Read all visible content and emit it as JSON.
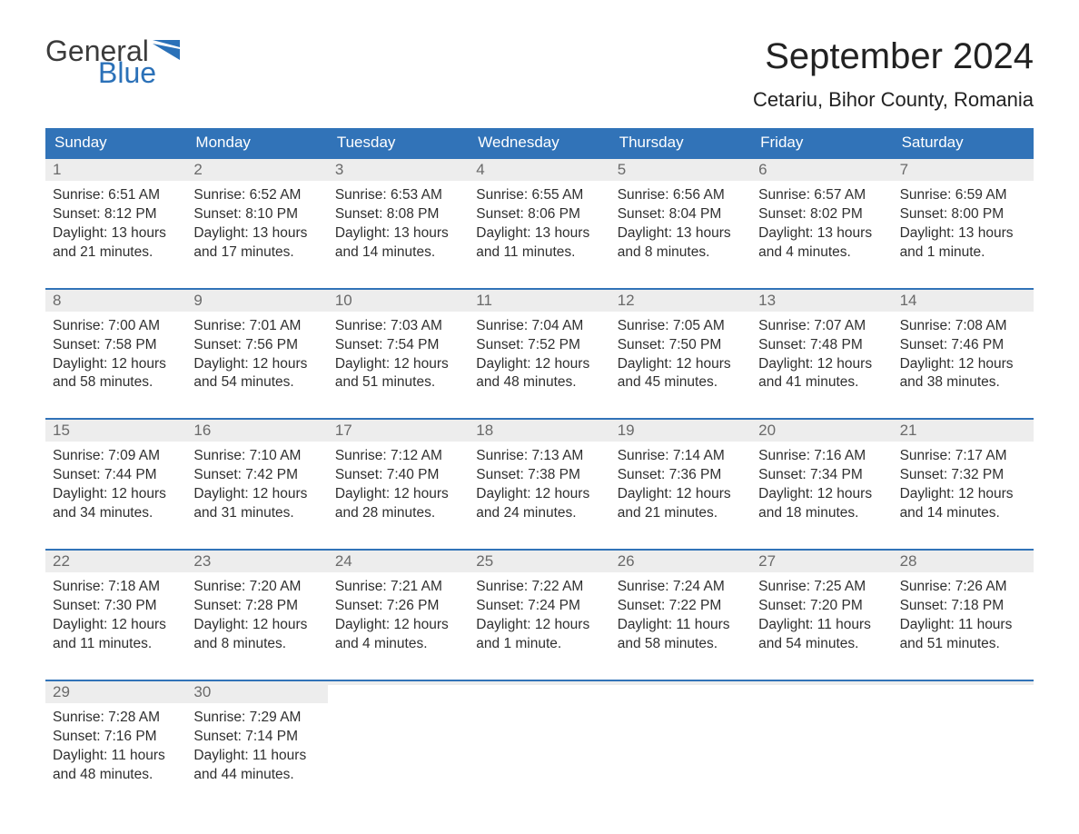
{
  "brand": {
    "text1": "General",
    "text2": "Blue",
    "flag_color": "#2b71b8"
  },
  "title": "September 2024",
  "location": "Cetariu, Bihor County, Romania",
  "colors": {
    "header_bg": "#3173b8",
    "header_text": "#ffffff",
    "daynum_bg": "#ededed",
    "daynum_text": "#6a6a6a",
    "week_border": "#3173b8",
    "body_text": "#2f2f2f",
    "page_bg": "#ffffff"
  },
  "fonts": {
    "title_pt": 40,
    "location_pt": 22,
    "dow_pt": 17,
    "daynum_pt": 17,
    "body_pt": 15.5
  },
  "dow": [
    "Sunday",
    "Monday",
    "Tuesday",
    "Wednesday",
    "Thursday",
    "Friday",
    "Saturday"
  ],
  "weeks": [
    [
      {
        "n": "1",
        "sunrise": "Sunrise: 6:51 AM",
        "sunset": "Sunset: 8:12 PM",
        "dl1": "Daylight: 13 hours",
        "dl2": "and 21 minutes."
      },
      {
        "n": "2",
        "sunrise": "Sunrise: 6:52 AM",
        "sunset": "Sunset: 8:10 PM",
        "dl1": "Daylight: 13 hours",
        "dl2": "and 17 minutes."
      },
      {
        "n": "3",
        "sunrise": "Sunrise: 6:53 AM",
        "sunset": "Sunset: 8:08 PM",
        "dl1": "Daylight: 13 hours",
        "dl2": "and 14 minutes."
      },
      {
        "n": "4",
        "sunrise": "Sunrise: 6:55 AM",
        "sunset": "Sunset: 8:06 PM",
        "dl1": "Daylight: 13 hours",
        "dl2": "and 11 minutes."
      },
      {
        "n": "5",
        "sunrise": "Sunrise: 6:56 AM",
        "sunset": "Sunset: 8:04 PM",
        "dl1": "Daylight: 13 hours",
        "dl2": "and 8 minutes."
      },
      {
        "n": "6",
        "sunrise": "Sunrise: 6:57 AM",
        "sunset": "Sunset: 8:02 PM",
        "dl1": "Daylight: 13 hours",
        "dl2": "and 4 minutes."
      },
      {
        "n": "7",
        "sunrise": "Sunrise: 6:59 AM",
        "sunset": "Sunset: 8:00 PM",
        "dl1": "Daylight: 13 hours",
        "dl2": "and 1 minute."
      }
    ],
    [
      {
        "n": "8",
        "sunrise": "Sunrise: 7:00 AM",
        "sunset": "Sunset: 7:58 PM",
        "dl1": "Daylight: 12 hours",
        "dl2": "and 58 minutes."
      },
      {
        "n": "9",
        "sunrise": "Sunrise: 7:01 AM",
        "sunset": "Sunset: 7:56 PM",
        "dl1": "Daylight: 12 hours",
        "dl2": "and 54 minutes."
      },
      {
        "n": "10",
        "sunrise": "Sunrise: 7:03 AM",
        "sunset": "Sunset: 7:54 PM",
        "dl1": "Daylight: 12 hours",
        "dl2": "and 51 minutes."
      },
      {
        "n": "11",
        "sunrise": "Sunrise: 7:04 AM",
        "sunset": "Sunset: 7:52 PM",
        "dl1": "Daylight: 12 hours",
        "dl2": "and 48 minutes."
      },
      {
        "n": "12",
        "sunrise": "Sunrise: 7:05 AM",
        "sunset": "Sunset: 7:50 PM",
        "dl1": "Daylight: 12 hours",
        "dl2": "and 45 minutes."
      },
      {
        "n": "13",
        "sunrise": "Sunrise: 7:07 AM",
        "sunset": "Sunset: 7:48 PM",
        "dl1": "Daylight: 12 hours",
        "dl2": "and 41 minutes."
      },
      {
        "n": "14",
        "sunrise": "Sunrise: 7:08 AM",
        "sunset": "Sunset: 7:46 PM",
        "dl1": "Daylight: 12 hours",
        "dl2": "and 38 minutes."
      }
    ],
    [
      {
        "n": "15",
        "sunrise": "Sunrise: 7:09 AM",
        "sunset": "Sunset: 7:44 PM",
        "dl1": "Daylight: 12 hours",
        "dl2": "and 34 minutes."
      },
      {
        "n": "16",
        "sunrise": "Sunrise: 7:10 AM",
        "sunset": "Sunset: 7:42 PM",
        "dl1": "Daylight: 12 hours",
        "dl2": "and 31 minutes."
      },
      {
        "n": "17",
        "sunrise": "Sunrise: 7:12 AM",
        "sunset": "Sunset: 7:40 PM",
        "dl1": "Daylight: 12 hours",
        "dl2": "and 28 minutes."
      },
      {
        "n": "18",
        "sunrise": "Sunrise: 7:13 AM",
        "sunset": "Sunset: 7:38 PM",
        "dl1": "Daylight: 12 hours",
        "dl2": "and 24 minutes."
      },
      {
        "n": "19",
        "sunrise": "Sunrise: 7:14 AM",
        "sunset": "Sunset: 7:36 PM",
        "dl1": "Daylight: 12 hours",
        "dl2": "and 21 minutes."
      },
      {
        "n": "20",
        "sunrise": "Sunrise: 7:16 AM",
        "sunset": "Sunset: 7:34 PM",
        "dl1": "Daylight: 12 hours",
        "dl2": "and 18 minutes."
      },
      {
        "n": "21",
        "sunrise": "Sunrise: 7:17 AM",
        "sunset": "Sunset: 7:32 PM",
        "dl1": "Daylight: 12 hours",
        "dl2": "and 14 minutes."
      }
    ],
    [
      {
        "n": "22",
        "sunrise": "Sunrise: 7:18 AM",
        "sunset": "Sunset: 7:30 PM",
        "dl1": "Daylight: 12 hours",
        "dl2": "and 11 minutes."
      },
      {
        "n": "23",
        "sunrise": "Sunrise: 7:20 AM",
        "sunset": "Sunset: 7:28 PM",
        "dl1": "Daylight: 12 hours",
        "dl2": "and 8 minutes."
      },
      {
        "n": "24",
        "sunrise": "Sunrise: 7:21 AM",
        "sunset": "Sunset: 7:26 PM",
        "dl1": "Daylight: 12 hours",
        "dl2": "and 4 minutes."
      },
      {
        "n": "25",
        "sunrise": "Sunrise: 7:22 AM",
        "sunset": "Sunset: 7:24 PM",
        "dl1": "Daylight: 12 hours",
        "dl2": "and 1 minute."
      },
      {
        "n": "26",
        "sunrise": "Sunrise: 7:24 AM",
        "sunset": "Sunset: 7:22 PM",
        "dl1": "Daylight: 11 hours",
        "dl2": "and 58 minutes."
      },
      {
        "n": "27",
        "sunrise": "Sunrise: 7:25 AM",
        "sunset": "Sunset: 7:20 PM",
        "dl1": "Daylight: 11 hours",
        "dl2": "and 54 minutes."
      },
      {
        "n": "28",
        "sunrise": "Sunrise: 7:26 AM",
        "sunset": "Sunset: 7:18 PM",
        "dl1": "Daylight: 11 hours",
        "dl2": "and 51 minutes."
      }
    ],
    [
      {
        "n": "29",
        "sunrise": "Sunrise: 7:28 AM",
        "sunset": "Sunset: 7:16 PM",
        "dl1": "Daylight: 11 hours",
        "dl2": "and 48 minutes."
      },
      {
        "n": "30",
        "sunrise": "Sunrise: 7:29 AM",
        "sunset": "Sunset: 7:14 PM",
        "dl1": "Daylight: 11 hours",
        "dl2": "and 44 minutes."
      },
      {
        "n": "",
        "sunrise": "",
        "sunset": "",
        "dl1": "",
        "dl2": ""
      },
      {
        "n": "",
        "sunrise": "",
        "sunset": "",
        "dl1": "",
        "dl2": ""
      },
      {
        "n": "",
        "sunrise": "",
        "sunset": "",
        "dl1": "",
        "dl2": ""
      },
      {
        "n": "",
        "sunrise": "",
        "sunset": "",
        "dl1": "",
        "dl2": ""
      },
      {
        "n": "",
        "sunrise": "",
        "sunset": "",
        "dl1": "",
        "dl2": ""
      }
    ]
  ]
}
